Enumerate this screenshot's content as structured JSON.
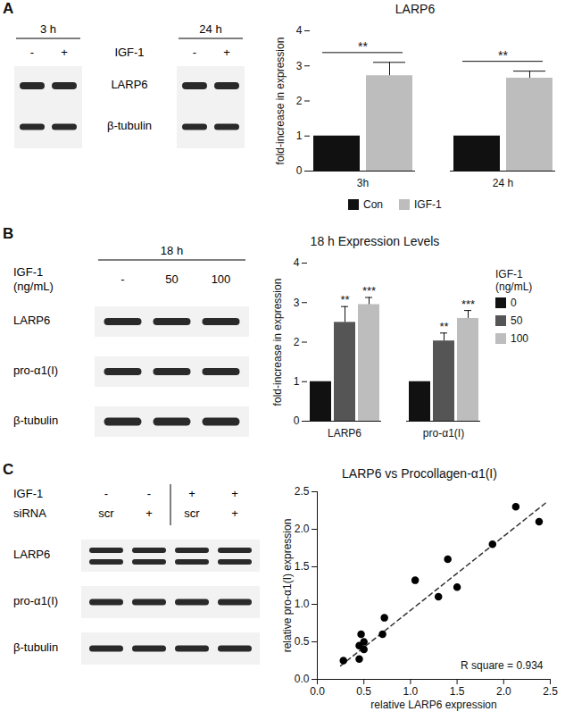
{
  "panel_labels": [
    "A",
    "B",
    "C"
  ],
  "blots": [
    {
      "groups": [
        {
          "label": "3 h",
          "lanes": [
            "-",
            "+"
          ]
        },
        {
          "label": "24 h",
          "lanes": [
            "-",
            "+"
          ]
        }
      ],
      "condition": "IGF-1",
      "rows": [
        "LARP6",
        "β-tubulin"
      ]
    },
    {
      "groups": [
        {
          "label": "18 h",
          "lanes": [
            "-",
            "50",
            "100"
          ]
        }
      ],
      "condition": "IGF-1 (ng/mL)",
      "rows": [
        "LARP6",
        "pro-α1(I)",
        "β-tubulin"
      ]
    },
    {
      "conditions": [
        {
          "label": "IGF-1",
          "lanes": [
            "-",
            "-",
            "+",
            "+"
          ]
        },
        {
          "label": "siRNA",
          "lanes": [
            "scr",
            "+",
            "scr",
            "+"
          ]
        }
      ],
      "rows": [
        "LARP6",
        "pro-α1(I)",
        "β-tubulin"
      ]
    }
  ],
  "chart_data": [
    {
      "type": "bar",
      "title": "LARP6",
      "y_label": "fold-increase in expression",
      "categories": [
        "3h",
        "24 h"
      ],
      "series": [
        {
          "name": "Con",
          "color": "#111111",
          "values": [
            1,
            1
          ]
        },
        {
          "name": "IGF-1",
          "color": "#bdbdbd",
          "values": [
            2.72,
            2.65
          ],
          "errors": [
            0.38,
            0.2
          ]
        }
      ],
      "ylim": [
        0,
        4
      ],
      "yticks": [
        0,
        1,
        2,
        3,
        4
      ],
      "legend": "bottom",
      "annotations": [
        {
          "category": "3h",
          "text": "**"
        },
        {
          "category": "24 h",
          "text": "**"
        }
      ]
    },
    {
      "type": "bar",
      "title": "18 h Expression Levels",
      "y_label": "fold-increase in expression",
      "legend_title": "IGF-1 (ng/mL)",
      "categories": [
        "LARP6",
        "pro-α1(I)"
      ],
      "series": [
        {
          "name": "0",
          "color": "#111111",
          "values": [
            1,
            1
          ]
        },
        {
          "name": "50",
          "color": "#555555",
          "values": [
            2.5,
            2.03
          ],
          "errors": [
            0.4,
            0.2
          ]
        },
        {
          "name": "100",
          "color": "#bdbdbd",
          "values": [
            2.95,
            2.6
          ],
          "errors": [
            0.18,
            0.2
          ]
        }
      ],
      "ylim": [
        0,
        4
      ],
      "yticks": [
        0,
        1,
        2,
        3,
        4
      ],
      "legend": "right",
      "annotations": [
        {
          "category": "LARP6",
          "series": "50",
          "text": "**"
        },
        {
          "category": "LARP6",
          "series": "100",
          "text": "***"
        },
        {
          "category": "pro-α1(I)",
          "series": "50",
          "text": "**"
        },
        {
          "category": "pro-α1(I)",
          "series": "100",
          "text": "***"
        }
      ]
    },
    {
      "type": "scatter",
      "title": "LARP6 vs Procollagen-α1(I)",
      "x_label": "relative LARP6 expression",
      "y_label": "relative pro-α1(I) expression",
      "x": [
        0.28,
        0.45,
        0.45,
        0.47,
        0.5,
        0.5,
        0.7,
        0.72,
        1.05,
        1.3,
        1.4,
        1.5,
        1.88,
        2.13,
        2.38
      ],
      "y": [
        0.25,
        0.27,
        0.45,
        0.6,
        0.5,
        0.4,
        0.6,
        0.82,
        1.32,
        1.1,
        1.6,
        1.23,
        1.8,
        2.3,
        2.1
      ],
      "color": "#000000",
      "xlim": [
        0,
        2.5
      ],
      "xticks": [
        {
          "value": 0,
          "label": "0.0"
        },
        0.5,
        {
          "value": 1,
          "label": "1.0"
        },
        1.5,
        {
          "value": 2,
          "label": "2.0"
        },
        2.5
      ],
      "ylim": [
        0,
        2.5
      ],
      "yticks": [
        {
          "value": 0,
          "label": "0.0"
        },
        0.5,
        {
          "value": 1,
          "label": "1.0"
        },
        1.5,
        {
          "value": 2,
          "label": "2.0"
        },
        2.5
      ],
      "trend_line": {
        "x": [
          0.25,
          2.45
        ],
        "y": [
          0.18,
          2.35
        ],
        "line_style": "dashed"
      },
      "annotations": [
        {
          "text": "R square = 0.934"
        }
      ]
    }
  ]
}
